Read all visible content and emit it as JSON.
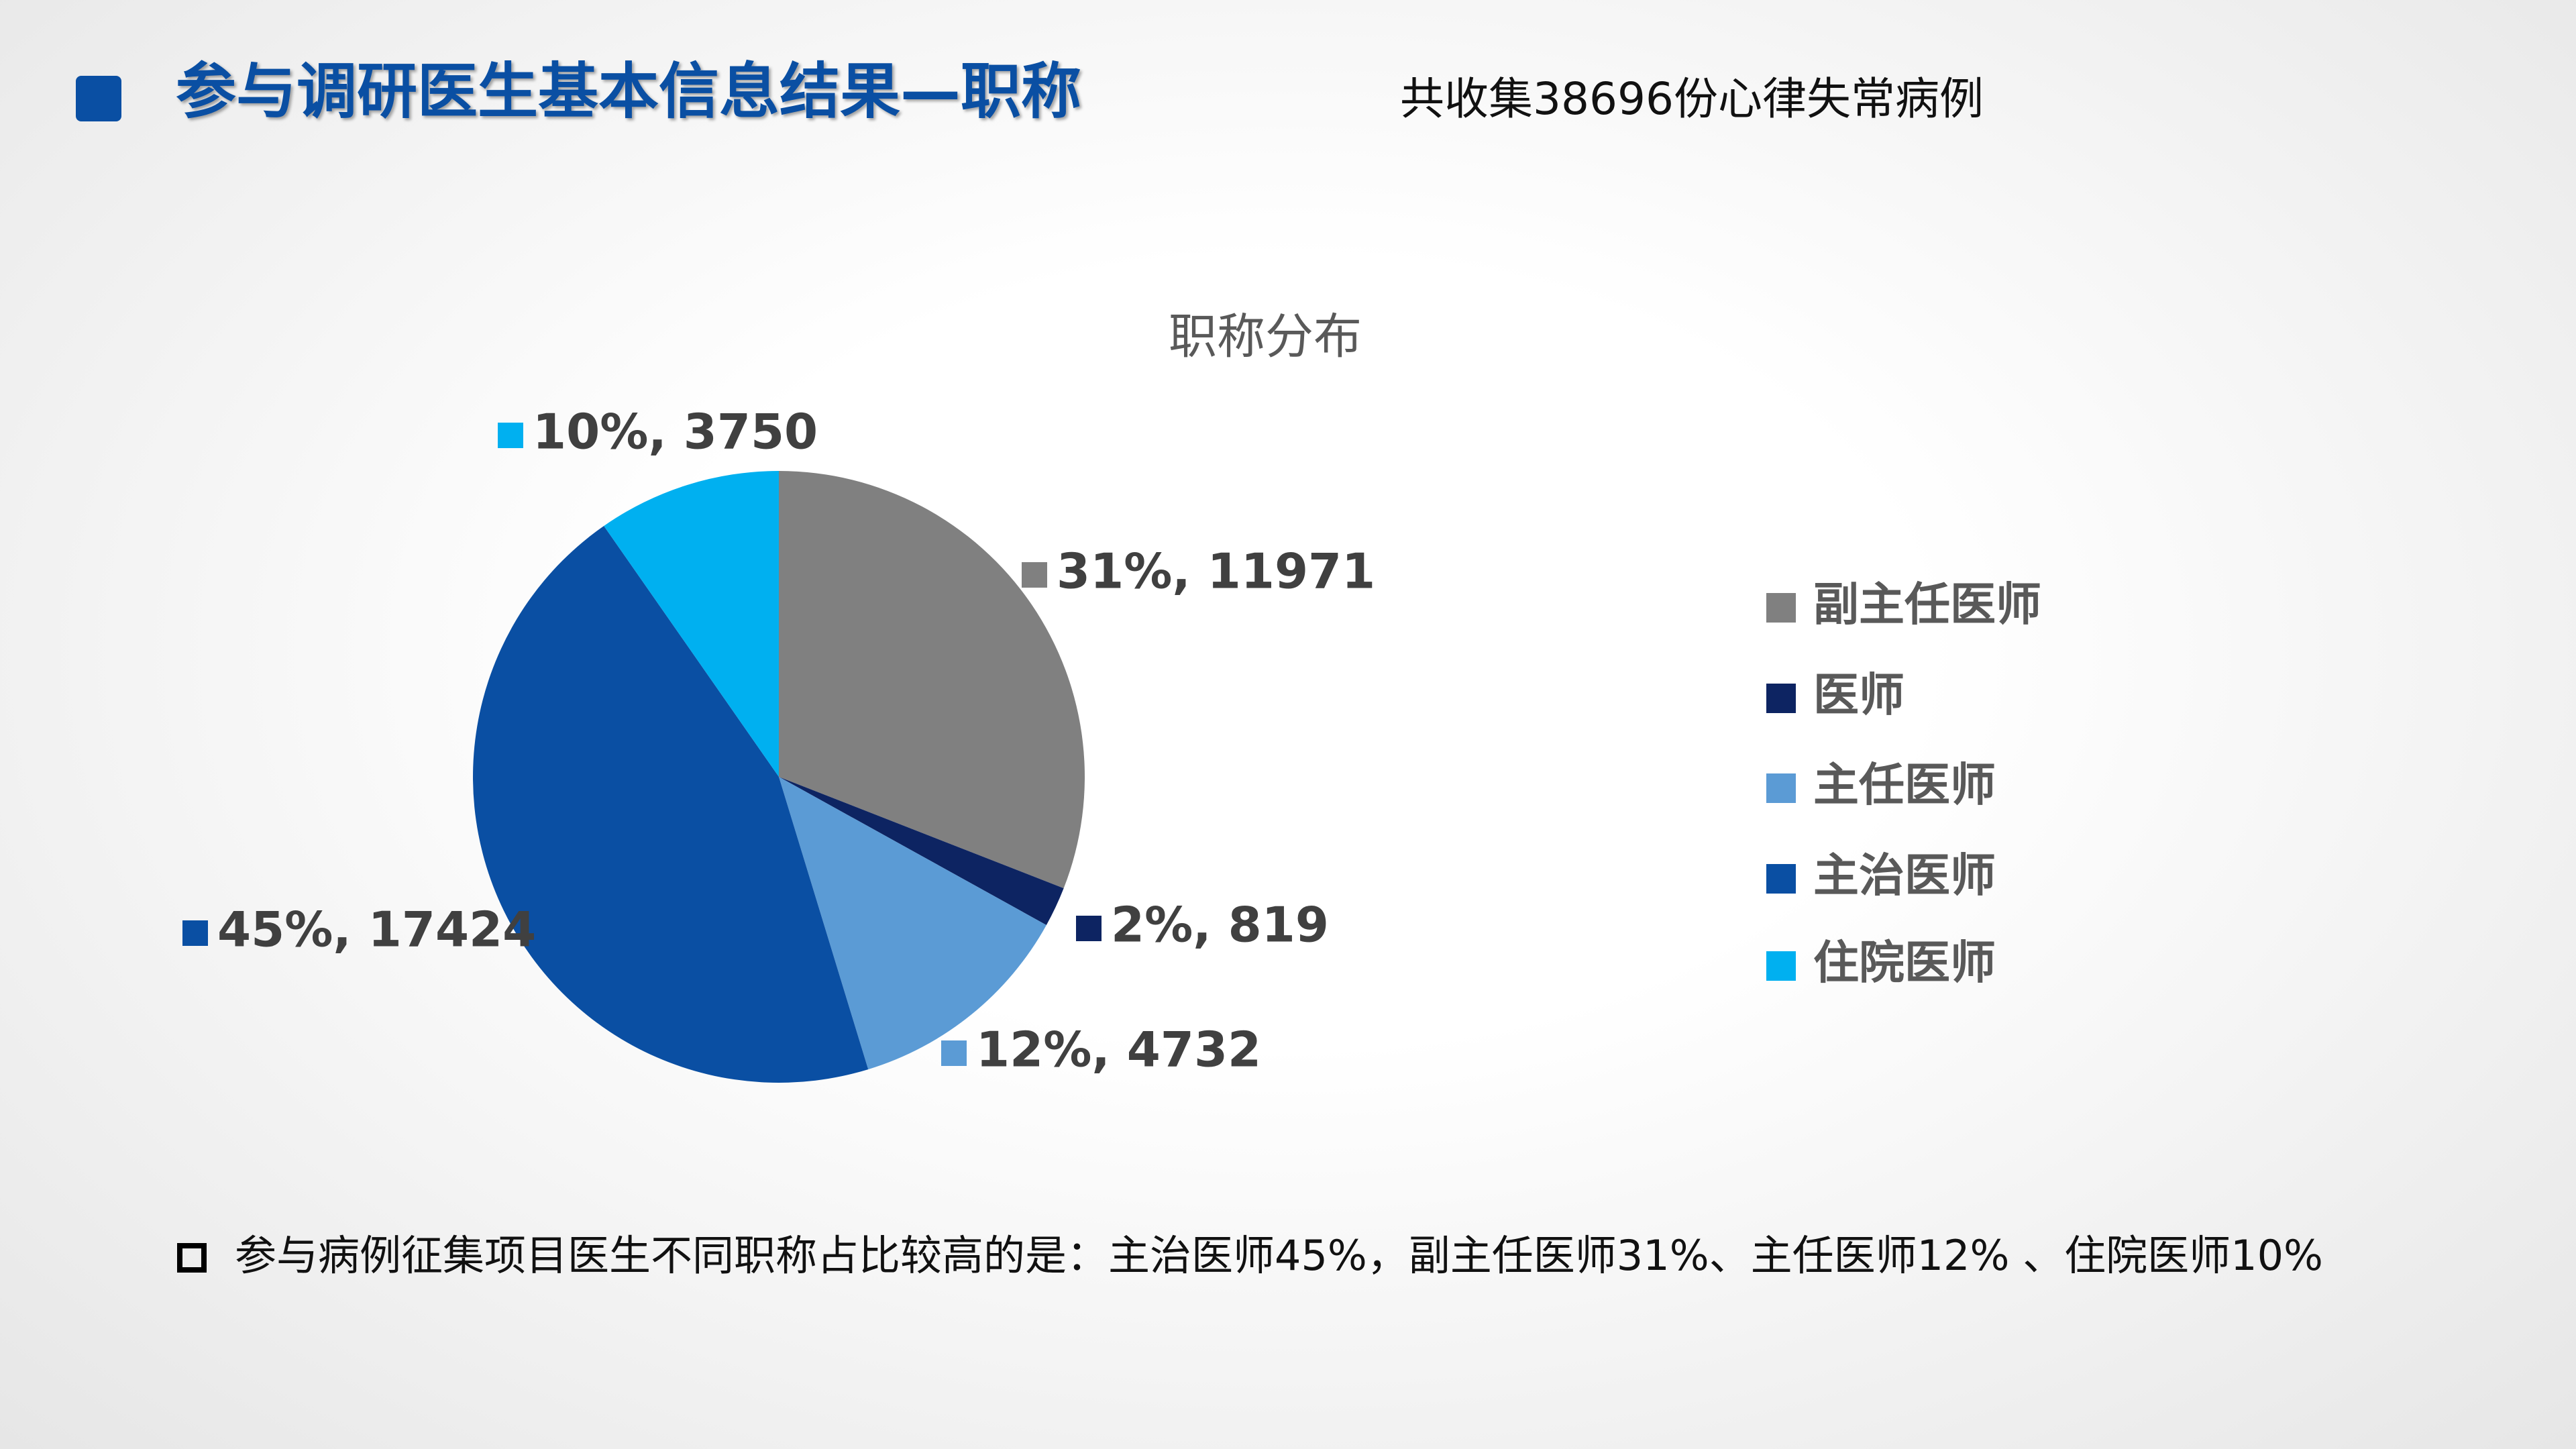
{
  "slide": {
    "title": "参与调研医生基本信息结果—职称",
    "subtitle": "共收集38696份心律失常病例",
    "note": "参与病例征集项目医生不同职称占比较高的是：主治医师45%，副主任医师31%、主任医师12% 、住院医师10%"
  },
  "chart_data": {
    "type": "pie",
    "title": "职称分布",
    "categories": [
      "副主任医师",
      "医师",
      "主任医师",
      "主治医师",
      "住院医师"
    ],
    "values": [
      11971,
      819,
      4732,
      17424,
      3750
    ],
    "value_labels": [
      "31%, 11971",
      "2%, 819",
      "12%, 4732",
      "45%, 17424",
      "10%, 3750"
    ],
    "colors": [
      "#808080",
      "#0d2462",
      "#5b9bd5",
      "#0a4fa3",
      "#00b0f0"
    ],
    "legend": "right"
  }
}
